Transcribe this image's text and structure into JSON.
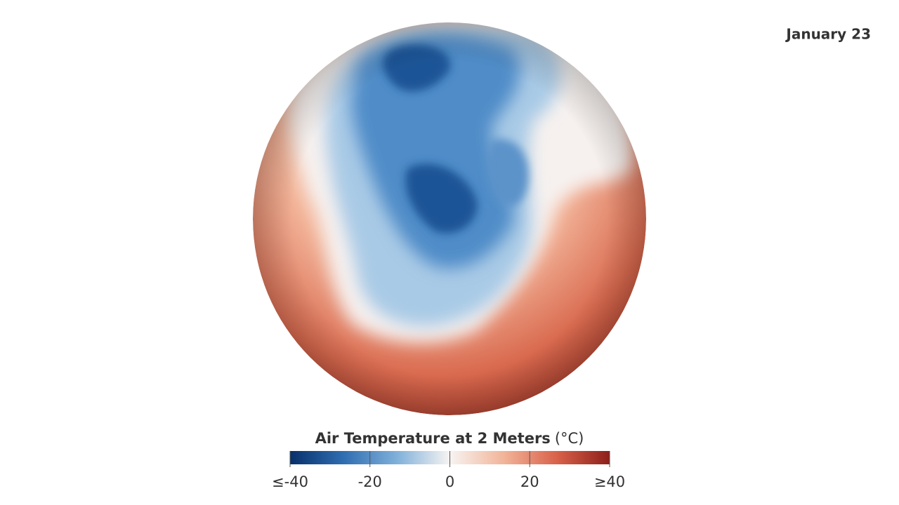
{
  "date": "January 23",
  "colorbar": {
    "title": "Air Temperature at 2 Meters",
    "unit": "(°C)",
    "lim": [
      -40,
      40
    ],
    "ticks": [
      {
        "value": -40,
        "label": "≤-40"
      },
      -20,
      0,
      20,
      {
        "value": 40,
        "label": "≥40"
      }
    ],
    "colors": [
      "#08306b",
      "#2f6db1",
      "#7fb0da",
      "#f7f4f2",
      "#f2b59a",
      "#d9624a",
      "#8e1f1a"
    ]
  }
}
